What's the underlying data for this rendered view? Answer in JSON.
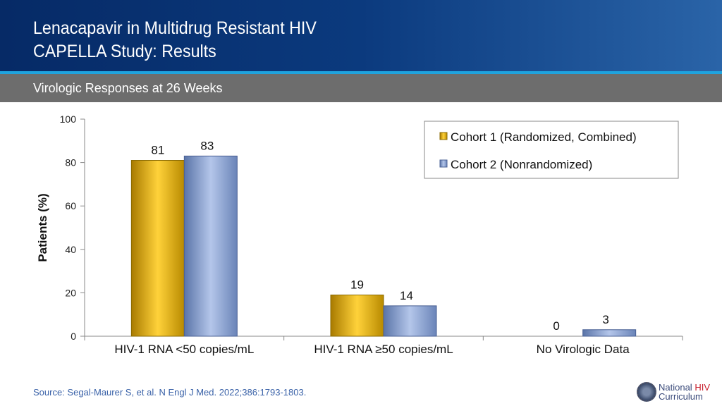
{
  "header": {
    "title_line1": "Lenacapavir in Multidrug Resistant HIV",
    "title_line2": "CAPELLA Study: Results",
    "subtitle": "Virologic Responses at 26 Weeks"
  },
  "footer": {
    "source": "Source: Segal-Maurer S, et al. N Engl J Med. 2022;386:1793-1803.",
    "logo_line1a": "National ",
    "logo_line1b": "HIV",
    "logo_line2": "Curriculum"
  },
  "chart_data": {
    "type": "bar",
    "categories": [
      "HIV-1 RNA <50 copies/mL",
      "HIV-1 RNA ≥50 copies/mL",
      "No Virologic Data"
    ],
    "series": [
      {
        "name": "Cohort 1 (Randomized, Combined)",
        "values": [
          81,
          19,
          0
        ],
        "color": "#e0a800"
      },
      {
        "name": "Cohort 2 (Nonrandomized)",
        "values": [
          83,
          14,
          3
        ],
        "color": "#7f98cc"
      }
    ],
    "ylabel": "Patients (%)",
    "xlabel": "",
    "ylim": [
      0,
      100
    ],
    "yticks": [
      0,
      20,
      40,
      60,
      80,
      100
    ],
    "grid": false,
    "legend": "top-right"
  }
}
